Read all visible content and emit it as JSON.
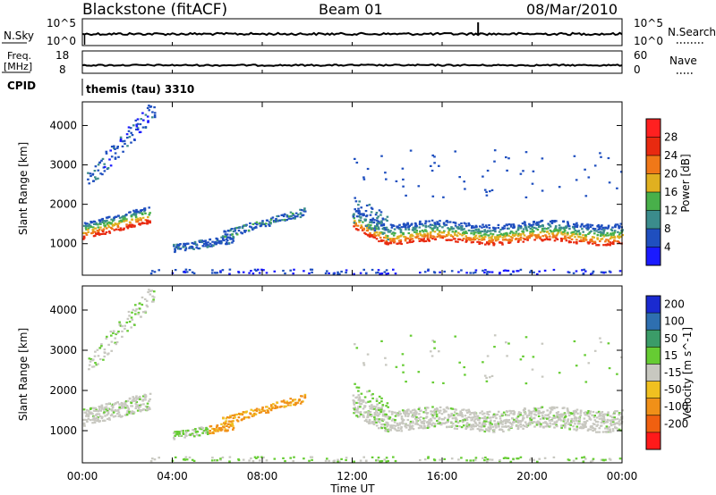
{
  "header": {
    "station": "Blackstone (fitACF)",
    "beam": "Beam 01",
    "date": "08/Mar/2010"
  },
  "params": {
    "nsky_label": "N.Sky",
    "nsky_ticks": [
      "10^5",
      "10^0"
    ],
    "nsearch_label": "N.Search",
    "nsearch_ticks": [
      "10^5",
      "10^0"
    ],
    "freq_label_1": "Freq.",
    "freq_label_2": "[MHz]",
    "freq_ticks": [
      "18",
      "8"
    ],
    "nave_label": "Nave",
    "nave_ticks": [
      "60",
      "0"
    ],
    "cpid_label": "CPID",
    "cpid_text": "themis (tau) 3310"
  },
  "chart_data": [
    {
      "type": "heatmap",
      "panel": "power",
      "ylabel": "Slant Range [km]",
      "yticks": [
        1000,
        2000,
        3000,
        4000
      ],
      "ylim": [
        200,
        4600
      ],
      "xlim": [
        0,
        24
      ],
      "colorbar": {
        "label": "Power [dB]",
        "ticks": [
          4,
          8,
          12,
          16,
          20,
          24,
          28
        ],
        "colors": [
          "#1a1aff",
          "#1f4fbf",
          "#3b8c8c",
          "#48b04a",
          "#e0b020",
          "#f07818",
          "#e82a10",
          "#ff2020"
        ]
      },
      "regions": [
        {
          "t": [
            0.0,
            3.0
          ],
          "r": [
            1200,
            1700
          ],
          "level": "strong"
        },
        {
          "t": [
            0.2,
            3.2
          ],
          "r": [
            2200,
            4500
          ],
          "level": "weak"
        },
        {
          "t": [
            4.0,
            9.8
          ],
          "r": [
            800,
            1600
          ],
          "level": "weak"
        },
        {
          "t": [
            12.0,
            24.0
          ],
          "r": [
            900,
            2000
          ],
          "level": "strong"
        }
      ]
    },
    {
      "type": "heatmap",
      "panel": "velocity",
      "ylabel": "Slant Range [km]",
      "yticks": [
        1000,
        2000,
        3000,
        4000
      ],
      "ylim": [
        200,
        4600
      ],
      "xlim": [
        0,
        24
      ],
      "xticks": [
        "00:00",
        "04:00",
        "08:00",
        "12:00",
        "16:00",
        "20:00",
        "00:00"
      ],
      "xlabel": "Time UT",
      "colorbar": {
        "label": "Velocity [m s^-1]",
        "ticks": [
          200,
          100,
          50,
          15,
          -15,
          -50,
          -100,
          -200
        ],
        "colors": [
          "#1a2ad0",
          "#2e6fb0",
          "#3b9c68",
          "#66cc33",
          "#c8c8c0",
          "#f0c020",
          "#f09018",
          "#f06010",
          "#ff1a1a"
        ]
      }
    }
  ]
}
